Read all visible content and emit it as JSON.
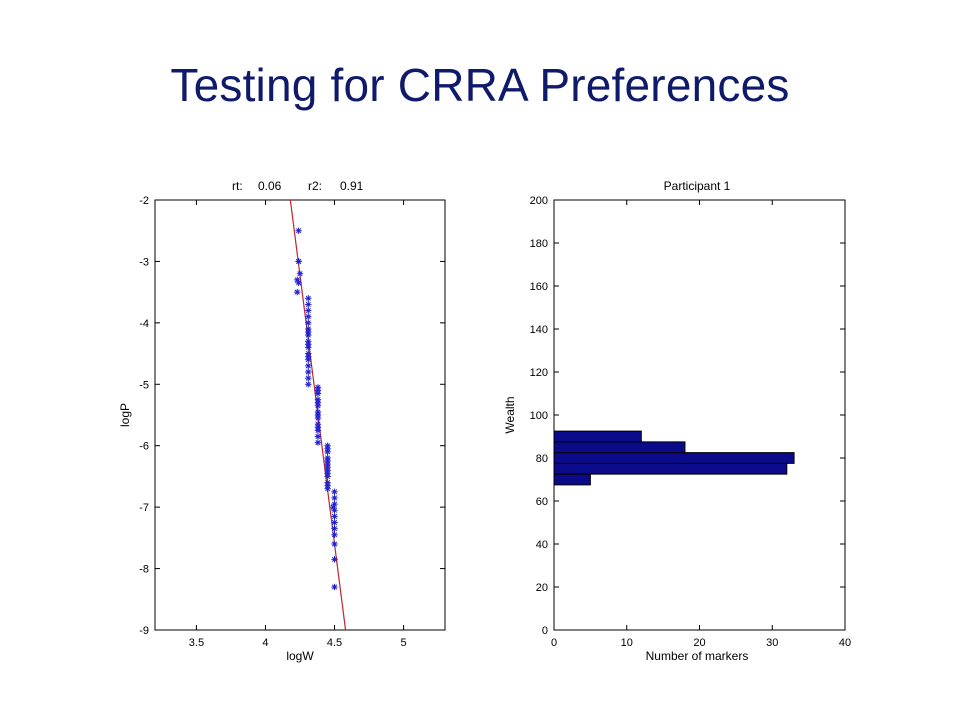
{
  "slide": {
    "title": "Testing for CRRA Preferences"
  },
  "colors": {
    "title": "#0f1a6b",
    "marker": "#1f1fd0",
    "fit_line": "#c0262b",
    "bar_fill": "#0a0a8a"
  },
  "chart_data": [
    {
      "type": "scatter",
      "title_parts": {
        "rt_label": "rt:",
        "rt_value": "0.06",
        "r2_label": "r2:",
        "r2_value": "0.91"
      },
      "xlabel": "logW",
      "ylabel": "logP",
      "xlim": [
        3.2,
        5.3
      ],
      "ylim": [
        -9,
        -2
      ],
      "xticks": [
        "3.5",
        "4",
        "4.5",
        "5"
      ],
      "yticks": [
        "-2",
        "-3",
        "-4",
        "-5",
        "-6",
        "-7",
        "-8",
        "-9"
      ],
      "grid": false,
      "marker": "asterisk",
      "series": [
        {
          "x": [
            4.24,
            4.24,
            4.25,
            4.24,
            4.23,
            4.24,
            4.23,
            4.31,
            4.31,
            4.31,
            4.31,
            4.31,
            4.31,
            4.31,
            4.31,
            4.31,
            4.31,
            4.31,
            4.31,
            4.31,
            4.31,
            4.31,
            4.31,
            4.31,
            4.31,
            4.38,
            4.38,
            4.38,
            4.38,
            4.38,
            4.38,
            4.38,
            4.38,
            4.38,
            4.38,
            4.38,
            4.38,
            4.38,
            4.38,
            4.45,
            4.45,
            4.45,
            4.45,
            4.45,
            4.45,
            4.45,
            4.45,
            4.45,
            4.45,
            4.45,
            4.45,
            4.45,
            4.5,
            4.5,
            4.5,
            4.5,
            4.5,
            4.5,
            4.5,
            4.5,
            4.5,
            4.5,
            4.5,
            4.49
          ],
          "y": [
            -2.5,
            -3.0,
            -3.2,
            -3.35,
            -3.5,
            -3.0,
            -3.3,
            -3.6,
            -3.7,
            -3.8,
            -3.9,
            -4.0,
            -4.1,
            -4.2,
            -4.3,
            -4.4,
            -4.5,
            -4.6,
            -4.7,
            -4.8,
            -4.9,
            -5.0,
            -4.15,
            -4.35,
            -4.55,
            -5.05,
            -5.15,
            -5.25,
            -5.35,
            -5.45,
            -5.55,
            -5.65,
            -5.75,
            -5.85,
            -5.95,
            -5.1,
            -5.3,
            -5.5,
            -5.7,
            -6.0,
            -6.1,
            -6.2,
            -6.3,
            -6.4,
            -6.5,
            -6.6,
            -6.7,
            -6.05,
            -6.25,
            -6.45,
            -6.65,
            -6.35,
            -6.75,
            -6.85,
            -6.95,
            -7.05,
            -7.15,
            -7.25,
            -7.35,
            -7.45,
            -7.6,
            -7.85,
            -8.3,
            -7.0
          ]
        }
      ],
      "fit_line": {
        "x": [
          4.18,
          4.58
        ],
        "y": [
          -2.0,
          -9.0
        ]
      }
    },
    {
      "type": "bar",
      "orientation": "horizontal",
      "title": "Participant 1",
      "xlabel": "Number of markers",
      "ylabel": "Wealth",
      "xlim": [
        0,
        40
      ],
      "ylim": [
        0,
        200
      ],
      "xticks": [
        "0",
        "10",
        "20",
        "30",
        "40"
      ],
      "yticks": [
        "0",
        "20",
        "40",
        "60",
        "80",
        "100",
        "120",
        "140",
        "160",
        "180",
        "200"
      ],
      "grid": false,
      "bars": [
        {
          "center": 70,
          "value": 5
        },
        {
          "center": 75,
          "value": 32
        },
        {
          "center": 80,
          "value": 33
        },
        {
          "center": 85,
          "value": 18
        },
        {
          "center": 90,
          "value": 12
        }
      ],
      "bin_width": 5
    }
  ]
}
